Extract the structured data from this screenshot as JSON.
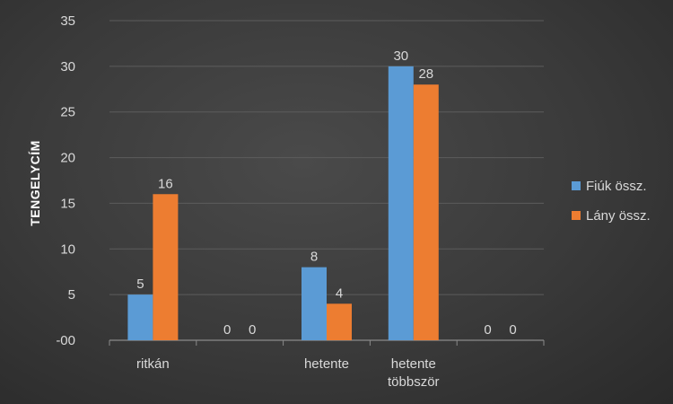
{
  "chart_data": {
    "type": "bar",
    "title": "",
    "xlabel": "",
    "ylabel": "TENGELYCÍM",
    "categories": [
      [
        "ritkán"
      ],
      [
        ""
      ],
      [
        "hetente"
      ],
      [
        "hetente",
        "többször"
      ],
      [
        ""
      ]
    ],
    "series": [
      {
        "name": "Fiúk össz.",
        "color": "#5b9bd5",
        "values": [
          5,
          0,
          8,
          30,
          0
        ]
      },
      {
        "name": "Lány össz.",
        "color": "#ed7d31",
        "values": [
          16,
          0,
          4,
          28,
          0
        ]
      }
    ],
    "ylim": [
      0,
      35
    ],
    "yticks": [
      "-00",
      "5",
      "10",
      "15",
      "20",
      "25",
      "30",
      "35"
    ],
    "grid": true,
    "legend_position": "right"
  }
}
